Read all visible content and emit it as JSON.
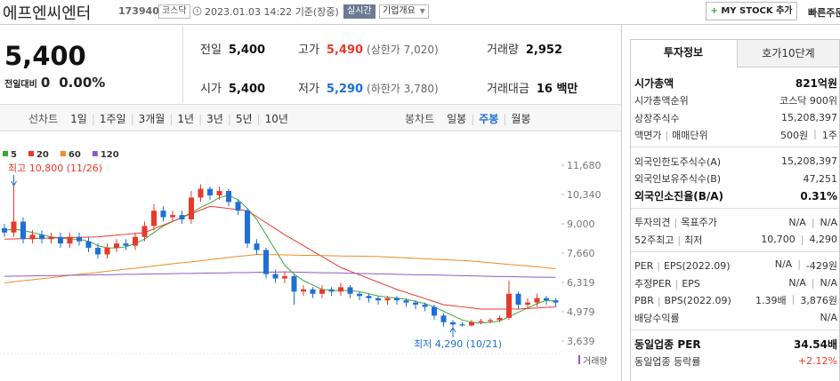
{
  "header": {
    "name": "에프엔씨엔터",
    "code": "173940",
    "market": "코스닥",
    "datetime": "2023.01.03 14:22",
    "basis": "기준(장중)",
    "realtime": "실시간",
    "overview": "기업개요",
    "mystock": "MY STOCK 추가",
    "quick_order": "빠른주문"
  },
  "price": {
    "current": "5,400",
    "change_label": "전일대비",
    "change": "0",
    "change_rate": "0.00%"
  },
  "summary": [
    {
      "label": "전일",
      "value": "5,400"
    },
    {
      "label": "고가",
      "value": "5,490",
      "note": "(상한가 7,020)"
    },
    {
      "label": "거래량",
      "value": "2,952"
    },
    {
      "label": "시가",
      "value": "5,400"
    },
    {
      "label": "저가",
      "value": "5,290",
      "note": "(하한가 3,780)"
    },
    {
      "label": "거래대금",
      "value": "16 백만"
    }
  ],
  "line_tabs": {
    "label": "선차트",
    "items": [
      "1일",
      "1주일",
      "3개월",
      "1년",
      "3년",
      "5년",
      "10년"
    ]
  },
  "candle_tabs": {
    "label": "봉차트",
    "items": [
      "일봉",
      "주봉",
      "월봉"
    ],
    "selected": 1
  },
  "chart_data": {
    "type": "candlestick",
    "up_color": "#e8392b",
    "down_color": "#1f6fd6",
    "open": [
      8800,
      8600,
      9100,
      8300,
      8500,
      8300,
      8400,
      8100,
      8400,
      8200,
      7900,
      7600,
      7900,
      8100,
      8000,
      8400,
      8900,
      9600,
      9300,
      9400,
      9200,
      10200,
      10600,
      10300,
      10500,
      10000,
      9600,
      8100,
      7800,
      6700,
      6500,
      6600,
      5900,
      6000,
      5800,
      6000,
      5900,
      6100,
      5800,
      5700,
      5600,
      5500,
      5600,
      5500,
      5400,
      5300,
      5200,
      4800,
      4500,
      4400,
      4350,
      4500,
      4550,
      4600,
      4700,
      5800,
      5300,
      5400,
      5600,
      5500
    ],
    "high": [
      9000,
      10800,
      9300,
      8700,
      8700,
      8600,
      8600,
      8600,
      8600,
      8400,
      8100,
      8100,
      8300,
      8300,
      8600,
      9100,
      9900,
      9800,
      9600,
      9600,
      10500,
      10800,
      10700,
      10700,
      10600,
      10100,
      9700,
      8300,
      7900,
      6900,
      6800,
      6700,
      6200,
      6100,
      6200,
      6100,
      6300,
      6200,
      5900,
      5800,
      5700,
      5700,
      5700,
      5600,
      5500,
      5400,
      5300,
      4900,
      4600,
      4500,
      4600,
      4650,
      4700,
      4800,
      6400,
      5900,
      5600,
      5800,
      5700,
      5600
    ],
    "low": [
      8400,
      8400,
      8100,
      8100,
      8100,
      8100,
      7900,
      7900,
      8000,
      7700,
      7400,
      7400,
      7700,
      7800,
      7800,
      8200,
      8700,
      9100,
      9100,
      9000,
      9000,
      10000,
      10100,
      10100,
      9800,
      9400,
      7900,
      7600,
      6500,
      6300,
      6300,
      5300,
      5700,
      5600,
      5600,
      5700,
      5700,
      5600,
      5500,
      5400,
      5300,
      5300,
      5300,
      5200,
      5100,
      5000,
      4600,
      4300,
      4290,
      4300,
      4300,
      4400,
      4450,
      4500,
      4600,
      5100,
      5100,
      5200,
      5300,
      5200
    ],
    "close": [
      8600,
      9100,
      8300,
      8500,
      8300,
      8400,
      8100,
      8400,
      8200,
      7900,
      7600,
      7900,
      8100,
      8000,
      8400,
      8900,
      9600,
      9300,
      9400,
      9200,
      10200,
      10600,
      10300,
      10500,
      10000,
      9600,
      8100,
      7800,
      6700,
      6500,
      6600,
      5900,
      6000,
      5800,
      6000,
      5900,
      6100,
      5800,
      5700,
      5600,
      5500,
      5600,
      5500,
      5400,
      5300,
      5200,
      4800,
      4500,
      4400,
      4350,
      4500,
      4550,
      4600,
      4700,
      5800,
      5300,
      5400,
      5600,
      5500,
      5400
    ],
    "moving_averages": [
      {
        "name": "5",
        "color": "#3aa83a",
        "values": [
          8700,
          8750,
          8700,
          8600,
          8500,
          8400,
          8350,
          8300,
          8300,
          8200,
          8000,
          7900,
          7900,
          7950,
          8100,
          8300,
          8600,
          8900,
          9100,
          9300,
          9500,
          9750,
          9950,
          10200,
          10300,
          10100,
          9700,
          9200,
          8500,
          7800,
          7100,
          6700,
          6400,
          6200,
          6000,
          5950,
          5950,
          5950,
          5900,
          5800,
          5700,
          5650,
          5600,
          5550,
          5450,
          5350,
          5200,
          5000,
          4800,
          4600,
          4500,
          4450,
          4500,
          4550,
          4750,
          4950,
          5150,
          5350,
          5500,
          5450
        ]
      },
      {
        "name": "20",
        "color": "#e8392b",
        "values": [
          8300,
          8310,
          8320,
          8330,
          8340,
          8350,
          8360,
          8370,
          8380,
          8390,
          8400,
          8440,
          8480,
          8520,
          8560,
          8600,
          8770,
          8940,
          9110,
          9290,
          9460,
          9630,
          9800,
          9750,
          9700,
          9650,
          9600,
          9330,
          9050,
          8780,
          8500,
          8250,
          8000,
          7750,
          7500,
          7250,
          7000,
          6830,
          6670,
          6500,
          6330,
          6170,
          6000,
          5860,
          5720,
          5580,
          5440,
          5300,
          5250,
          5200,
          5150,
          5100,
          5100,
          5100,
          5100,
          5100,
          5130,
          5150,
          5180,
          5200
        ]
      },
      {
        "name": "60",
        "color": "#f08a24",
        "values": [
          6300,
          6350,
          6400,
          6440,
          6490,
          6540,
          6590,
          6640,
          6690,
          6730,
          6780,
          6830,
          6880,
          6930,
          6970,
          7020,
          7070,
          7120,
          7170,
          7220,
          7260,
          7310,
          7360,
          7410,
          7460,
          7510,
          7550,
          7600,
          7590,
          7590,
          7580,
          7570,
          7560,
          7560,
          7550,
          7540,
          7530,
          7520,
          7520,
          7510,
          7500,
          7480,
          7460,
          7440,
          7420,
          7400,
          7380,
          7360,
          7340,
          7320,
          7300,
          7260,
          7220,
          7180,
          7140,
          7110,
          7070,
          7030,
          6990,
          6950
        ]
      },
      {
        "name": "120",
        "color": "#8e5cc4",
        "values": [
          6600,
          6610,
          6610,
          6620,
          6630,
          6630,
          6640,
          6650,
          6650,
          6660,
          6670,
          6670,
          6680,
          6690,
          6690,
          6700,
          6710,
          6710,
          6720,
          6730,
          6730,
          6740,
          6750,
          6750,
          6760,
          6770,
          6770,
          6780,
          6790,
          6790,
          6800,
          6790,
          6780,
          6770,
          6760,
          6760,
          6750,
          6740,
          6730,
          6720,
          6710,
          6700,
          6690,
          6680,
          6670,
          6670,
          6660,
          6650,
          6640,
          6630,
          6620,
          6610,
          6600,
          6590,
          6590,
          6580,
          6570,
          6560,
          6560,
          6550
        ]
      }
    ],
    "ylim": [
      3639,
      11680
    ],
    "yticks": [
      {
        "value": 11680,
        "label": "11,680"
      },
      {
        "value": 10340,
        "label": "10,340"
      },
      {
        "value": 9000,
        "label": "9,000"
      },
      {
        "value": 7660,
        "label": "7,660"
      },
      {
        "value": 6319,
        "label": "6,319"
      },
      {
        "value": 4979,
        "label": "4,979"
      },
      {
        "value": 3639,
        "label": "3,639"
      }
    ],
    "high_label": "최고 10,800 (11/26)",
    "low_label": "최저 4,290 (10/21)",
    "volume_label": "거래량"
  },
  "invest": {
    "tabs": [
      "투자정보",
      "호가10단계"
    ],
    "sections": [
      [
        {
          "labels": [
            "시가총액"
          ],
          "values": [
            "821억원"
          ]
        },
        {
          "labels": [
            "시가총액순위"
          ],
          "values": [
            "코스닥 900위"
          ]
        },
        {
          "labels": [
            "상장주식수"
          ],
          "values": [
            "15,208,397"
          ]
        },
        {
          "labels": [
            "액면가",
            "매매단위"
          ],
          "values": [
            "500원",
            "1주"
          ]
        }
      ],
      [
        {
          "labels": [
            "외국인한도주식수(A)"
          ],
          "values": [
            "15,208,397"
          ]
        },
        {
          "labels": [
            "외국인보유주식수(B)"
          ],
          "values": [
            "47,251"
          ]
        },
        {
          "labels": [
            "외국인소진율(B/A)"
          ],
          "values": [
            "0.31%"
          ]
        }
      ],
      [
        {
          "labels": [
            "투자의견",
            "목표주가"
          ],
          "values": [
            "N/A",
            "N/A"
          ]
        },
        {
          "labels": [
            "52주최고",
            "최저"
          ],
          "values": [
            "10,700",
            "4,290"
          ]
        }
      ],
      [
        {
          "labels": [
            "PER",
            "EPS(2022.09)"
          ],
          "values": [
            "N/A",
            "-429원"
          ]
        },
        {
          "labels": [
            "추정PER",
            "EPS"
          ],
          "values": [
            "N/A",
            "N/A"
          ]
        },
        {
          "labels": [
            "PBR",
            "BPS(2022.09)"
          ],
          "values": [
            "1.39배",
            "3,876원"
          ]
        },
        {
          "labels": [
            "배당수익률"
          ],
          "values": [
            "N/A"
          ]
        }
      ],
      [
        {
          "labels": [
            "동일업종 PER"
          ],
          "values": [
            "34.54배"
          ]
        },
        {
          "labels": [
            "동일업종 등락률"
          ],
          "values": [
            "+2.12%"
          ]
        }
      ]
    ]
  }
}
